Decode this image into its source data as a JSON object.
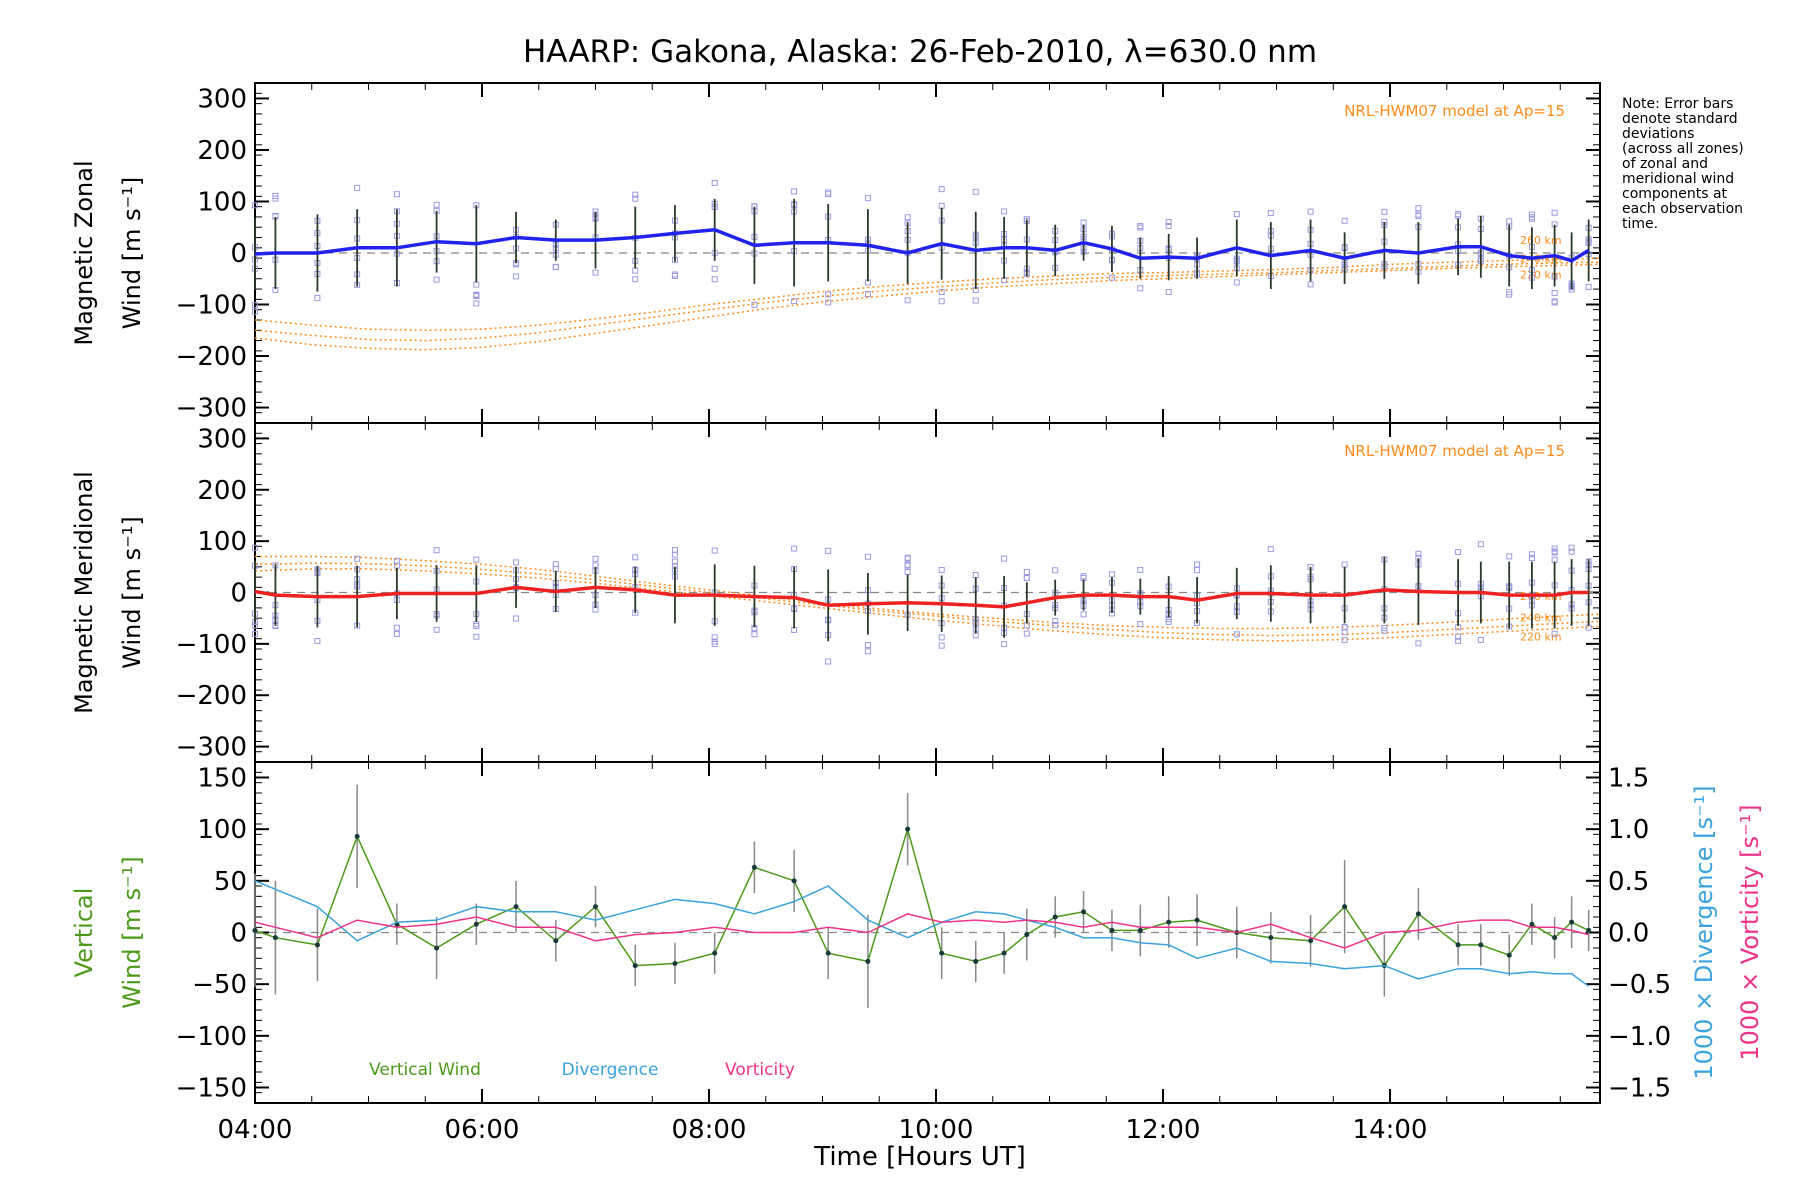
{
  "title": "HAARP: Gakona,  Alaska: 26-Feb-2010, λ=630.0 nm",
  "note_lines": [
    "Note: Error bars",
    "denote standard",
    "deviations",
    "(across all zones)",
    "of zonal and",
    "meridional wind",
    "components at",
    "each observation",
    "time."
  ],
  "xlabel": "Time [Hours UT]",
  "colors": {
    "zonal": "#2222ee",
    "meridional": "#ee2222",
    "vertical": "#4c9a1a",
    "divergence": "#3aa3dd",
    "vorticity": "#ee3388",
    "model": "#ff8c1a",
    "scatter": "#9a9ae0"
  },
  "chart_data": [
    {
      "type": "line",
      "panel": "zonal",
      "ylabel_lines": [
        "Magnetic Zonal",
        "Wind [m s⁻¹]"
      ],
      "ylim": [
        -330,
        330
      ],
      "yticks": [
        -300,
        -200,
        -100,
        0,
        100,
        200,
        300
      ],
      "xlim": [
        4.0,
        15.85
      ],
      "xticks": [
        "04:00",
        "06:00",
        "08:00",
        "10:00",
        "12:00",
        "14:00"
      ],
      "model_label": "NRL-HWM07 model at Ap=15",
      "model_altitudes": [
        "260 km",
        "240 km",
        "220 km"
      ],
      "series": [
        {
          "x": [
            4.0,
            4.18,
            4.55,
            4.9,
            5.25,
            5.6,
            5.95,
            6.3,
            6.65,
            7.0,
            7.35,
            7.7,
            8.05,
            8.4,
            8.75,
            9.05,
            9.4,
            9.75,
            10.05,
            10.35,
            10.6,
            10.8,
            11.05,
            11.3,
            11.55,
            11.8,
            12.05,
            12.3,
            12.65,
            12.95,
            13.3,
            13.6,
            13.95,
            14.25,
            14.6,
            14.8,
            15.05,
            15.25,
            15.45,
            15.6,
            15.75
          ],
          "values": [
            -2,
            0,
            0,
            10,
            10,
            22,
            18,
            30,
            25,
            25,
            30,
            38,
            45,
            15,
            20,
            20,
            15,
            0,
            18,
            5,
            10,
            10,
            5,
            20,
            8,
            -10,
            -8,
            -10,
            10,
            -5,
            5,
            -10,
            5,
            0,
            12,
            12,
            -5,
            -10,
            -5,
            -15,
            5
          ],
          "errors": [
            70,
            70,
            75,
            75,
            75,
            60,
            75,
            50,
            40,
            55,
            60,
            55,
            60,
            75,
            85,
            75,
            70,
            60,
            70,
            75,
            60,
            55,
            50,
            35,
            45,
            40,
            45,
            40,
            55,
            65,
            60,
            50,
            55,
            60,
            55,
            60,
            60,
            60,
            60,
            55,
            60
          ]
        }
      ],
      "model_curves": [
        {
          "name": "260 km",
          "x": [
            4.0,
            4.5,
            5.0,
            5.5,
            6.0,
            6.5,
            7.0,
            7.5,
            8.0,
            8.5,
            9.0,
            9.5,
            10.0,
            10.5,
            11.0,
            11.5,
            12.0,
            12.5,
            13.0,
            13.5,
            14.0,
            14.5,
            15.0,
            15.5,
            15.85
          ],
          "values": [
            -130,
            -140,
            -148,
            -150,
            -148,
            -140,
            -128,
            -115,
            -100,
            -88,
            -75,
            -65,
            -57,
            -50,
            -45,
            -40,
            -38,
            -35,
            -32,
            -28,
            -22,
            -18,
            -15,
            -12,
            -10
          ]
        },
        {
          "name": "240 km",
          "x": [
            4.0,
            4.5,
            5.0,
            5.5,
            6.0,
            6.5,
            7.0,
            7.5,
            8.0,
            8.5,
            9.0,
            9.5,
            10.0,
            10.5,
            11.0,
            11.5,
            12.0,
            12.5,
            13.0,
            13.5,
            14.0,
            14.5,
            15.0,
            15.5,
            15.85
          ],
          "values": [
            -150,
            -160,
            -168,
            -170,
            -165,
            -155,
            -140,
            -125,
            -110,
            -96,
            -84,
            -74,
            -66,
            -58,
            -52,
            -48,
            -44,
            -41,
            -38,
            -34,
            -30,
            -26,
            -22,
            -19,
            -18
          ]
        },
        {
          "name": "220 km",
          "x": [
            4.0,
            4.5,
            5.0,
            5.5,
            6.0,
            6.5,
            7.0,
            7.5,
            8.0,
            8.5,
            9.0,
            9.5,
            10.0,
            10.5,
            11.0,
            11.5,
            12.0,
            12.5,
            13.0,
            13.5,
            14.0,
            14.5,
            15.0,
            15.5,
            15.85
          ],
          "values": [
            -165,
            -178,
            -185,
            -188,
            -183,
            -172,
            -156,
            -140,
            -124,
            -108,
            -95,
            -84,
            -74,
            -66,
            -60,
            -54,
            -50,
            -46,
            -42,
            -38,
            -34,
            -30,
            -27,
            -24,
            -22
          ]
        }
      ]
    },
    {
      "type": "line",
      "panel": "meridional",
      "ylabel_lines": [
        "Magnetic Meridional",
        "Wind [m s⁻¹]"
      ],
      "ylim": [
        -330,
        330
      ],
      "yticks": [
        -300,
        -200,
        -100,
        0,
        100,
        200,
        300
      ],
      "xlim": [
        4.0,
        15.85
      ],
      "xticks": [
        "04:00",
        "06:00",
        "08:00",
        "10:00",
        "12:00",
        "14:00"
      ],
      "model_label": "NRL-HWM07 model at Ap=15",
      "model_altitudes": [
        "260 km",
        "240 km",
        "220 km"
      ],
      "series": [
        {
          "x": [
            4.0,
            4.18,
            4.55,
            4.9,
            5.25,
            5.6,
            5.95,
            6.3,
            6.65,
            7.0,
            7.35,
            7.7,
            8.05,
            8.4,
            8.75,
            9.05,
            9.4,
            9.75,
            10.05,
            10.35,
            10.6,
            10.8,
            11.05,
            11.3,
            11.55,
            11.8,
            12.05,
            12.3,
            12.65,
            12.95,
            13.3,
            13.6,
            13.95,
            14.25,
            14.6,
            14.8,
            15.05,
            15.25,
            15.45,
            15.6,
            15.75
          ],
          "values": [
            2,
            -5,
            -8,
            -8,
            -2,
            -2,
            -2,
            10,
            2,
            10,
            5,
            -5,
            -5,
            -8,
            -10,
            -25,
            -22,
            -20,
            -22,
            -25,
            -28,
            -20,
            -10,
            -5,
            -5,
            -8,
            -8,
            -15,
            -2,
            -2,
            -5,
            -5,
            5,
            2,
            0,
            0,
            -5,
            -5,
            -5,
            0,
            0
          ],
          "errors": [
            60,
            60,
            60,
            60,
            50,
            55,
            55,
            40,
            40,
            40,
            45,
            55,
            60,
            60,
            60,
            70,
            60,
            55,
            55,
            55,
            60,
            40,
            35,
            30,
            35,
            35,
            40,
            45,
            50,
            55,
            55,
            55,
            65,
            65,
            65,
            60,
            65,
            65,
            65,
            65,
            65
          ]
        }
      ],
      "model_curves": [
        {
          "name": "260 km",
          "x": [
            4.0,
            4.5,
            5.0,
            5.5,
            6.0,
            6.5,
            7.0,
            7.5,
            8.0,
            8.5,
            9.0,
            9.5,
            10.0,
            10.5,
            11.0,
            11.5,
            12.0,
            12.5,
            13.0,
            13.5,
            14.0,
            14.5,
            15.0,
            15.5,
            15.85
          ],
          "values": [
            70,
            70,
            68,
            62,
            55,
            45,
            32,
            18,
            5,
            -8,
            -20,
            -32,
            -42,
            -50,
            -58,
            -64,
            -68,
            -70,
            -70,
            -68,
            -64,
            -58,
            -52,
            -46,
            -42
          ]
        },
        {
          "name": "240 km",
          "x": [
            4.0,
            4.5,
            5.0,
            5.5,
            6.0,
            6.5,
            7.0,
            7.5,
            8.0,
            8.5,
            9.0,
            9.5,
            10.0,
            10.5,
            11.0,
            11.5,
            12.0,
            12.5,
            13.0,
            13.5,
            14.0,
            14.5,
            15.0,
            15.5,
            15.85
          ],
          "values": [
            55,
            57,
            56,
            52,
            45,
            36,
            25,
            12,
            0,
            -12,
            -24,
            -36,
            -46,
            -56,
            -64,
            -72,
            -78,
            -82,
            -84,
            -82,
            -78,
            -72,
            -66,
            -60,
            -56
          ]
        },
        {
          "name": "220 km",
          "x": [
            4.0,
            4.5,
            5.0,
            5.5,
            6.0,
            6.5,
            7.0,
            7.5,
            8.0,
            8.5,
            9.0,
            9.5,
            10.0,
            10.5,
            11.0,
            11.5,
            12.0,
            12.5,
            13.0,
            13.5,
            14.0,
            14.5,
            15.0,
            15.5,
            15.85
          ],
          "values": [
            42,
            46,
            46,
            42,
            36,
            28,
            18,
            6,
            -6,
            -18,
            -30,
            -42,
            -54,
            -64,
            -74,
            -82,
            -88,
            -92,
            -94,
            -92,
            -88,
            -82,
            -76,
            -70,
            -66
          ]
        }
      ]
    },
    {
      "type": "line",
      "panel": "vertical",
      "ylabel_lines": [
        "Vertical",
        "Wind [m s⁻¹]"
      ],
      "ylim": [
        -165,
        165
      ],
      "yticks": [
        -150,
        -100,
        -50,
        0,
        50,
        100,
        150
      ],
      "y2label_lines": [
        "1000 × Divergence [s⁻¹]",
        "1000 × Vorticity [s⁻¹]"
      ],
      "y2lim": [
        -1.65,
        1.65
      ],
      "y2ticks": [
        -1.5,
        -1.0,
        -0.5,
        0.0,
        0.5,
        1.0,
        1.5
      ],
      "xlim": [
        4.0,
        15.85
      ],
      "xticks": [
        "04:00",
        "06:00",
        "08:00",
        "10:00",
        "12:00",
        "14:00"
      ],
      "legend": [
        "Vertical Wind",
        "Divergence",
        "Vorticity"
      ],
      "series": [
        {
          "name": "Vertical Wind",
          "axis": "left",
          "x": [
            4.0,
            4.18,
            4.55,
            4.9,
            5.25,
            5.6,
            5.95,
            6.3,
            6.65,
            7.0,
            7.35,
            7.7,
            8.05,
            8.4,
            8.75,
            9.05,
            9.4,
            9.75,
            10.05,
            10.35,
            10.6,
            10.8,
            11.05,
            11.3,
            11.55,
            11.8,
            12.05,
            12.3,
            12.65,
            12.95,
            13.3,
            13.6,
            13.95,
            14.25,
            14.6,
            14.8,
            15.05,
            15.25,
            15.45,
            15.6,
            15.75
          ],
          "values": [
            2,
            -5,
            -12,
            93,
            8,
            -15,
            8,
            25,
            -8,
            25,
            -32,
            -30,
            -20,
            63,
            50,
            -20,
            -28,
            100,
            -20,
            -28,
            -20,
            -2,
            15,
            20,
            2,
            2,
            10,
            12,
            0,
            -5,
            -8,
            25,
            -32,
            18,
            -12,
            -12,
            -22,
            8,
            -5,
            10,
            2
          ],
          "errors": [
            55,
            55,
            35,
            50,
            20,
            30,
            20,
            25,
            20,
            20,
            20,
            20,
            20,
            25,
            30,
            25,
            45,
            35,
            25,
            20,
            20,
            25,
            20,
            20,
            20,
            25,
            25,
            25,
            25,
            25,
            25,
            45,
            30,
            25,
            20,
            20,
            20,
            20,
            20,
            25,
            20
          ]
        },
        {
          "name": "Divergence",
          "axis": "right",
          "x": [
            4.0,
            4.55,
            4.9,
            5.25,
            5.6,
            5.95,
            6.3,
            6.65,
            7.0,
            7.35,
            7.7,
            8.05,
            8.4,
            8.75,
            9.05,
            9.4,
            9.75,
            10.05,
            10.35,
            10.6,
            10.8,
            11.05,
            11.3,
            11.55,
            11.8,
            12.05,
            12.3,
            12.65,
            12.95,
            13.3,
            13.6,
            13.95,
            14.25,
            14.6,
            14.8,
            15.05,
            15.25,
            15.45,
            15.6,
            15.75
          ],
          "values": [
            0.5,
            0.25,
            -0.08,
            0.1,
            0.12,
            0.25,
            0.2,
            0.2,
            0.12,
            0.22,
            0.32,
            0.28,
            0.18,
            0.3,
            0.45,
            0.12,
            -0.05,
            0.1,
            0.2,
            0.18,
            0.12,
            0.05,
            -0.05,
            -0.05,
            -0.1,
            -0.12,
            -0.25,
            -0.15,
            -0.28,
            -0.3,
            -0.35,
            -0.32,
            -0.45,
            -0.35,
            -0.35,
            -0.4,
            -0.38,
            -0.4,
            -0.4,
            -0.52
          ]
        },
        {
          "name": "Vorticity",
          "axis": "right",
          "x": [
            4.0,
            4.55,
            4.9,
            5.25,
            5.6,
            5.95,
            6.3,
            6.65,
            7.0,
            7.35,
            7.7,
            8.05,
            8.4,
            8.75,
            9.05,
            9.4,
            9.75,
            10.05,
            10.35,
            10.6,
            10.8,
            11.05,
            11.3,
            11.55,
            11.8,
            12.05,
            12.3,
            12.65,
            12.95,
            13.3,
            13.6,
            13.95,
            14.25,
            14.6,
            14.8,
            15.05,
            15.25,
            15.45,
            15.6,
            15.75
          ],
          "values": [
            0.1,
            -0.05,
            0.12,
            0.05,
            0.08,
            0.15,
            0.05,
            0.05,
            -0.08,
            -0.02,
            0.0,
            0.05,
            0.0,
            0.0,
            0.05,
            0.0,
            0.18,
            0.1,
            0.12,
            0.1,
            0.12,
            0.1,
            0.05,
            0.1,
            0.05,
            0.05,
            0.05,
            0.0,
            0.08,
            -0.05,
            -0.15,
            0.0,
            0.02,
            0.1,
            0.12,
            0.12,
            0.05,
            0.05,
            0.02,
            -0.02
          ]
        }
      ]
    }
  ]
}
